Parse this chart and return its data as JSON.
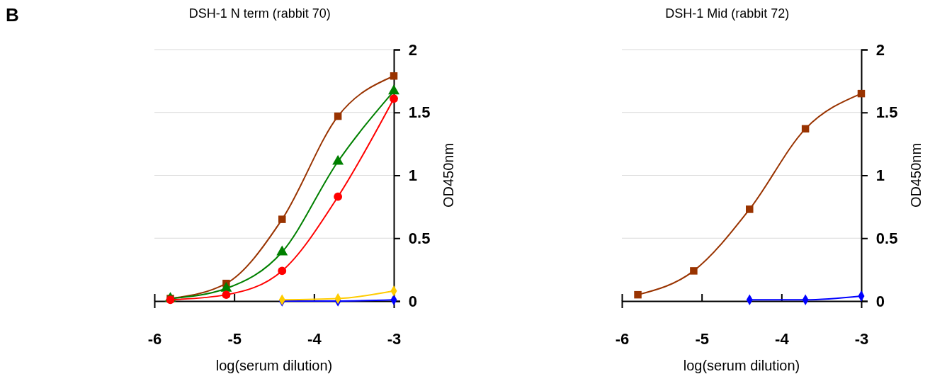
{
  "chart_data": [
    {
      "type": "line",
      "title": "DSH-1 N term (rabbit 70)",
      "xlabel": "log(serum dilution)",
      "ylabel": "OD450nm",
      "annotations": [
        "B"
      ],
      "xlim": [
        -6,
        -3
      ],
      "xticks": [
        -6,
        -5,
        -4,
        -3
      ],
      "ylim": [
        0,
        2
      ],
      "yticks": [
        0,
        0.5,
        1,
        1.5,
        2
      ],
      "grid": "y",
      "series": [
        {
          "color": "#993300",
          "marker": "square",
          "x": [
            -5.8,
            -5.1,
            -4.4,
            -3.7,
            -3
          ],
          "values": [
            0.02,
            0.14,
            0.65,
            1.47,
            1.79
          ]
        },
        {
          "color": "#008000",
          "marker": "triangle",
          "x": [
            -5.8,
            -5.1,
            -4.4,
            -3.7,
            -3
          ],
          "values": [
            0.02,
            0.1,
            0.39,
            1.11,
            1.67
          ]
        },
        {
          "color": "#ff0000",
          "marker": "circle",
          "x": [
            -5.8,
            -5.1,
            -4.4,
            -3.7,
            -3
          ],
          "values": [
            0.01,
            0.05,
            0.24,
            0.83,
            1.61
          ]
        },
        {
          "color": "#0000ff",
          "marker": "diamond",
          "x": [
            -4.4,
            -3.7,
            -3
          ],
          "values": [
            0.0,
            0.0,
            0.01
          ]
        },
        {
          "color": "#ffcc00",
          "marker": "diamond",
          "x": [
            -4.4,
            -3.7,
            -3
          ],
          "values": [
            0.01,
            0.02,
            0.08
          ]
        }
      ]
    },
    {
      "type": "line",
      "title": "DSH-1 Mid (rabbit 72)",
      "xlabel": "log(serum dilution)",
      "ylabel": "OD450nm",
      "xlim": [
        -6,
        -3
      ],
      "xticks": [
        -6,
        -5,
        -4,
        -3
      ],
      "ylim": [
        0,
        2
      ],
      "yticks": [
        0,
        0.5,
        1,
        1.5,
        2
      ],
      "grid": "y",
      "series": [
        {
          "color": "#993300",
          "marker": "square",
          "x": [
            -5.8,
            -5.1,
            -4.4,
            -3.7,
            -3
          ],
          "values": [
            0.05,
            0.24,
            0.73,
            1.37,
            1.65
          ]
        },
        {
          "color": "#0000ff",
          "marker": "diamond",
          "x": [
            -4.4,
            -3.7,
            -3
          ],
          "values": [
            0.01,
            0.01,
            0.04
          ]
        }
      ]
    }
  ]
}
